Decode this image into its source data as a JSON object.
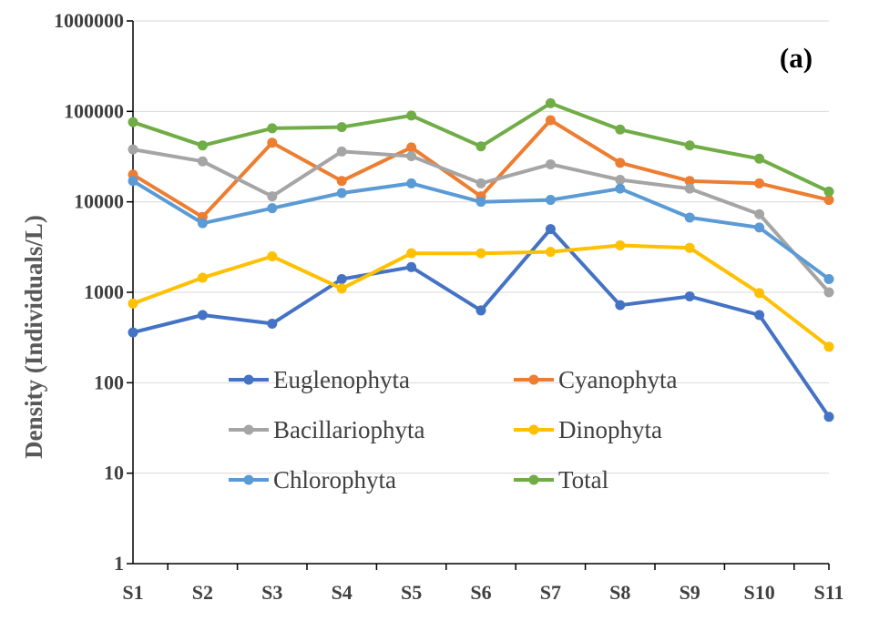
{
  "chart_data": {
    "type": "line",
    "panel_label": "(a)",
    "ylabel": "Density (Individuals/L)",
    "xlabel": "",
    "yscale": "log",
    "ylim": [
      1,
      1000000
    ],
    "ytick_labels": [
      "1",
      "10",
      "100",
      "1000",
      "10000",
      "100000",
      "1000000"
    ],
    "categories": [
      "S1",
      "S2",
      "S3",
      "S4",
      "S5",
      "S6",
      "S7",
      "S8",
      "S9",
      "S10",
      "S11"
    ],
    "grid": true,
    "legend_position": "lower-center inside plot, 2 columns",
    "series": [
      {
        "name": "Euglenophyta",
        "color": "#4472c4",
        "values": [
          360,
          560,
          450,
          1400,
          1900,
          630,
          5000,
          720,
          900,
          560,
          42
        ]
      },
      {
        "name": "Cyanophyta",
        "color": "#ed7d31",
        "values": [
          20000,
          6800,
          45000,
          17000,
          40000,
          11500,
          80000,
          27000,
          17000,
          16000,
          10500
        ]
      },
      {
        "name": "Bacillariophyta",
        "color": "#a5a5a5",
        "values": [
          38000,
          28000,
          11500,
          36000,
          32000,
          16000,
          26000,
          17500,
          14000,
          7300,
          1000
        ]
      },
      {
        "name": "Dinophyta",
        "color": "#ffc000",
        "values": [
          750,
          1450,
          2500,
          1100,
          2700,
          2700,
          2800,
          3300,
          3100,
          980,
          250
        ]
      },
      {
        "name": "Chlorophyta",
        "color": "#5b9bd5",
        "values": [
          17000,
          5800,
          8500,
          12500,
          16000,
          10000,
          10500,
          14000,
          6700,
          5200,
          1400
        ]
      },
      {
        "name": "Total",
        "color": "#70ad47",
        "values": [
          76000,
          42000,
          65000,
          67000,
          90000,
          41000,
          123000,
          63000,
          42000,
          30000,
          13000
        ]
      }
    ]
  }
}
